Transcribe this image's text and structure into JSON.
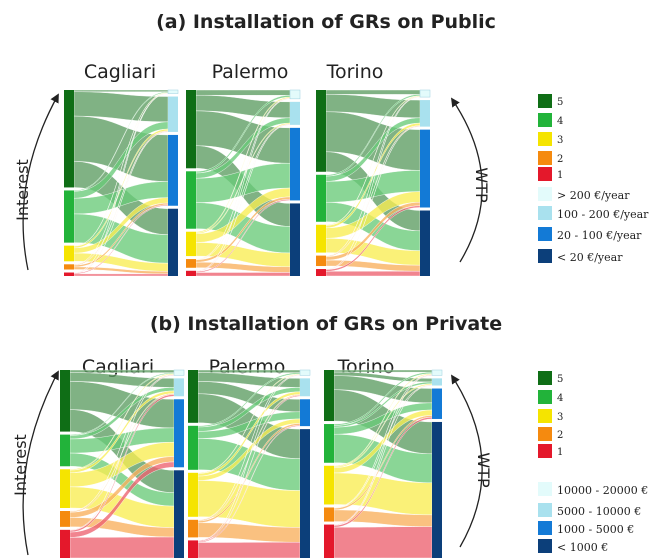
{
  "panels": [
    {
      "title": "(a) Installation of GRs on Public",
      "interest_label": "Interest",
      "wtp_label": "WTP",
      "interest_legend": [
        {
          "label": "5",
          "color": "#0f6e16"
        },
        {
          "label": "4",
          "color": "#22b33a"
        },
        {
          "label": "3",
          "color": "#f5e400"
        },
        {
          "label": "2",
          "color": "#f58a0f"
        },
        {
          "label": "1",
          "color": "#e4182b"
        }
      ],
      "wtp_legend": [
        {
          "label": "> 200 €/year",
          "color": "#e3fbfb"
        },
        {
          "label": "100 - 200 €/year",
          "color": "#a9e1ee"
        },
        {
          "label": "20 - 100 €/year",
          "color": "#137ad6"
        },
        {
          "label": "< 20 €/year",
          "color": "#0c3f7a"
        }
      ]
    },
    {
      "title": "(b) Installation of GRs on Private",
      "interest_label": "Interest",
      "wtp_label": "WTP",
      "interest_legend": [
        {
          "label": "5",
          "color": "#0f6e16"
        },
        {
          "label": "4",
          "color": "#22b33a"
        },
        {
          "label": "3",
          "color": "#f5e400"
        },
        {
          "label": "2",
          "color": "#f58a0f"
        },
        {
          "label": "1",
          "color": "#e4182b"
        }
      ],
      "wtp_legend": [
        {
          "label": "10000 - 20000 €",
          "color": "#e3fbfb"
        },
        {
          "label": "5000 - 10000 €",
          "color": "#a9e1ee"
        },
        {
          "label": "1000 - 5000 €",
          "color": "#137ad6"
        },
        {
          "label": "< 1000 €",
          "color": "#0c3f7a"
        }
      ]
    }
  ],
  "chart_data": [
    {
      "type": "sankey",
      "title": "(a) Installation of GRs on Public",
      "left_axis": "Interest",
      "right_axis": "WTP",
      "left_categories": [
        "5",
        "4",
        "3",
        "2",
        "1"
      ],
      "right_categories": [
        "> 200 €/year",
        "100 - 200 €/year",
        "20 - 100 €/year",
        "< 20 €/year"
      ],
      "cities": [
        {
          "name": "Cagliari",
          "interest_shares": [
            0.56,
            0.3,
            0.09,
            0.03,
            0.02
          ],
          "wtp_shares": [
            0.02,
            0.2,
            0.4,
            0.38
          ],
          "flows": [
            [
              0.01,
              0.14,
              0.26,
              0.15
            ],
            [
              0.005,
              0.04,
              0.09,
              0.165
            ],
            [
              0.003,
              0.01,
              0.03,
              0.047
            ],
            [
              0.001,
              0.004,
              0.01,
              0.015
            ],
            [
              0.001,
              0.002,
              0.005,
              0.012
            ]
          ]
        },
        {
          "name": "Palermo",
          "interest_shares": [
            0.45,
            0.33,
            0.14,
            0.05,
            0.03
          ],
          "wtp_shares": [
            0.05,
            0.13,
            0.41,
            0.41
          ],
          "flows": [
            [
              0.03,
              0.09,
              0.2,
              0.13
            ],
            [
              0.01,
              0.03,
              0.14,
              0.15
            ],
            [
              0.006,
              0.006,
              0.05,
              0.078
            ],
            [
              0.002,
              0.002,
              0.014,
              0.032
            ],
            [
              0.002,
              0.002,
              0.006,
              0.02
            ]
          ]
        },
        {
          "name": "Torino",
          "interest_shares": [
            0.47,
            0.27,
            0.16,
            0.06,
            0.04
          ],
          "wtp_shares": [
            0.04,
            0.15,
            0.44,
            0.37
          ],
          "flows": [
            [
              0.025,
              0.1,
              0.23,
              0.115
            ],
            [
              0.008,
              0.03,
              0.12,
              0.112
            ],
            [
              0.004,
              0.014,
              0.06,
              0.082
            ],
            [
              0.002,
              0.004,
              0.02,
              0.034
            ],
            [
              0.001,
              0.002,
              0.01,
              0.027
            ]
          ]
        }
      ]
    },
    {
      "type": "sankey",
      "title": "(b) Installation of GRs on Private",
      "left_axis": "Interest",
      "right_axis": "WTP",
      "left_categories": [
        "5",
        "4",
        "3",
        "2",
        "1"
      ],
      "right_categories": [
        "10000 - 20000 €",
        "5000 - 10000 €",
        "1000 - 5000 €",
        "< 1000 €"
      ],
      "cities": [
        {
          "name": "Cagliari",
          "interest_shares": [
            0.35,
            0.18,
            0.22,
            0.09,
            0.16
          ],
          "wtp_shares": [
            0.03,
            0.1,
            0.38,
            0.49
          ],
          "flows": [
            [
              0.015,
              0.05,
              0.16,
              0.125
            ],
            [
              0.005,
              0.02,
              0.08,
              0.075
            ],
            [
              0.005,
              0.015,
              0.08,
              0.12
            ],
            [
              0.002,
              0.005,
              0.03,
              0.053
            ],
            [
              0.003,
              0.01,
              0.03,
              0.117
            ]
          ]
        },
        {
          "name": "Palermo",
          "interest_shares": [
            0.3,
            0.25,
            0.25,
            0.1,
            0.1
          ],
          "wtp_shares": [
            0.03,
            0.1,
            0.15,
            0.72
          ],
          "flows": [
            [
              0.015,
              0.05,
              0.07,
              0.165
            ],
            [
              0.007,
              0.025,
              0.04,
              0.178
            ],
            [
              0.004,
              0.015,
              0.025,
              0.206
            ],
            [
              0.002,
              0.005,
              0.01,
              0.083
            ],
            [
              0.002,
              0.005,
              0.005,
              0.088
            ]
          ]
        },
        {
          "name": "Torino",
          "interest_shares": [
            0.29,
            0.22,
            0.22,
            0.08,
            0.19
          ],
          "wtp_shares": [
            0.03,
            0.04,
            0.17,
            0.76
          ],
          "flows": [
            [
              0.012,
              0.02,
              0.08,
              0.178
            ],
            [
              0.008,
              0.01,
              0.04,
              0.162
            ],
            [
              0.005,
              0.006,
              0.03,
              0.179
            ],
            [
              0.002,
              0.002,
              0.01,
              0.066
            ],
            [
              0.003,
              0.002,
              0.01,
              0.175
            ]
          ]
        }
      ]
    }
  ]
}
